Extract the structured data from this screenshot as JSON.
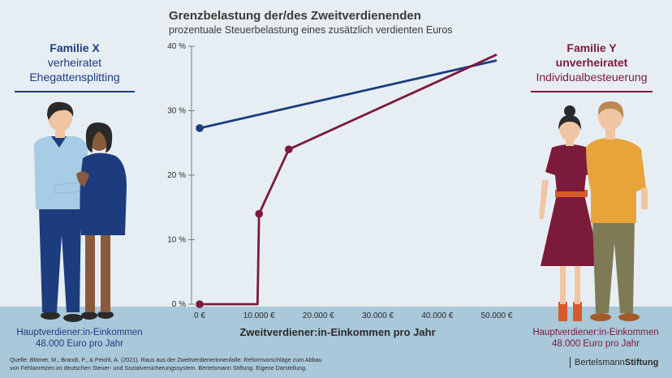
{
  "colors": {
    "family_x": "#1d3c7e",
    "family_y": "#7c1a3c",
    "background": "#e6eef3",
    "ground": "#a9c8da"
  },
  "header": {
    "title": "Grenzbelastung der/des Zweitverdienenden",
    "subtitle": "prozentuale Steuerbelastung eines zusätzlich verdienten Euros"
  },
  "family_x": {
    "title_1": "Familie X",
    "title_2": "verheiratet",
    "subtitle": "Ehegattensplitting",
    "income_1": "Hauptverdiener:in-Einkommen",
    "income_2": "48.000 Euro pro Jahr"
  },
  "family_y": {
    "title_1": "Familie Y",
    "title_2": "unverheiratet",
    "subtitle": "Individualbesteuerung",
    "income_1": "Hauptverdiener:in-Einkommen",
    "income_2": "48.000 Euro pro Jahr"
  },
  "chart_data": {
    "type": "line",
    "xlabel": "Zweitverdiener:in-Einkommen pro Jahr",
    "ylabel": "",
    "xlim": [
      0,
      50000
    ],
    "ylim": [
      0,
      40
    ],
    "x_ticks": [
      0,
      10000,
      20000,
      30000,
      40000,
      50000
    ],
    "x_tick_labels": [
      "0 €",
      "10.000 €",
      "20.000 €",
      "30.000 €",
      "40.000 €",
      "50.000 €"
    ],
    "y_ticks": [
      0,
      10,
      20,
      30,
      40
    ],
    "y_tick_labels": [
      "0 %",
      "10 %",
      "20 %",
      "30 %",
      "40 %"
    ],
    "grid": false,
    "series": [
      {
        "color": "#1d3c7e",
        "points": [
          [
            0,
            27.3
          ],
          [
            50000,
            37.8
          ]
        ],
        "markers": [
          [
            0,
            27.3
          ]
        ]
      },
      {
        "color": "#7c1a3c",
        "points": [
          [
            0,
            0
          ],
          [
            9744,
            0
          ],
          [
            10000,
            14
          ],
          [
            15000,
            24
          ],
          [
            50000,
            38.7
          ]
        ],
        "markers": [
          [
            0,
            0
          ],
          [
            10000,
            14
          ],
          [
            15000,
            24
          ]
        ]
      }
    ]
  },
  "footer": {
    "source_1": "Quelle: Blömer, M., Brandt, P., & Peichl, A. (2021). Raus aus der Zweitverdienerinnenfalle: Reformvorschläge zum Abbau",
    "source_2": "von Fehlanreizen im deutschen Steuer- und Sozialversicherungssystem. Bertelsmann Stiftung. Eigene Darstellung.",
    "brand_light": "Bertelsmann",
    "brand_bold": "Stiftung"
  }
}
